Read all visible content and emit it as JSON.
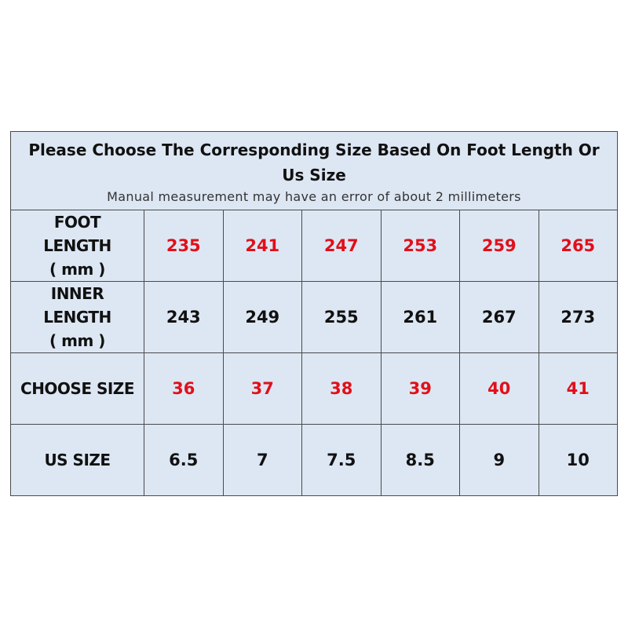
{
  "header": {
    "title": "Please Choose The Corresponding Size Based On Foot Length Or Us Size",
    "subtitle": "Manual measurement may have an error of about 2 millimeters"
  },
  "table": {
    "rows": [
      {
        "label": "FOOT\nLENGTH\n( mm )",
        "cells": [
          "235",
          "241",
          "247",
          "253",
          "259",
          "265"
        ],
        "color": "#e0101a"
      },
      {
        "label": "INNER\nLENGTH\n( mm )",
        "cells": [
          "243",
          "249",
          "255",
          "261",
          "267",
          "273"
        ],
        "color": "#111111"
      },
      {
        "label": "CHOOSE SIZE",
        "cells": [
          "36",
          "37",
          "38",
          "39",
          "40",
          "41"
        ],
        "color": "#e0101a"
      },
      {
        "label": "US SIZE",
        "cells": [
          "6.5",
          "7",
          "7.5",
          "8.5",
          "9",
          "10"
        ],
        "color": "#111111"
      }
    ]
  }
}
